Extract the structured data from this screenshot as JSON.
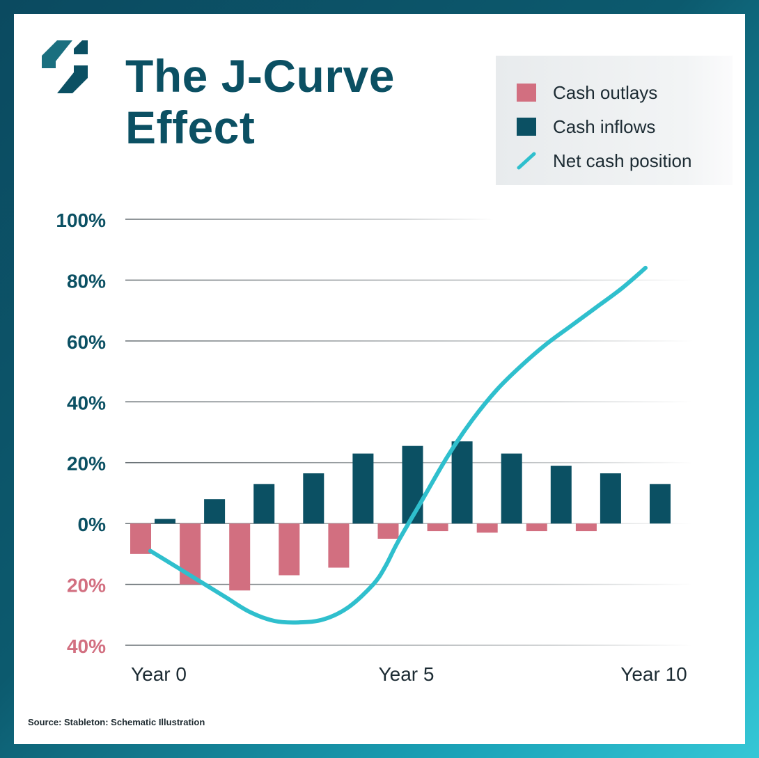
{
  "header": {
    "title_line1": "The J-Curve",
    "title_line2": "Effect",
    "logo_icon": "stableton-logo-icon"
  },
  "legend": {
    "items": [
      {
        "label": "Cash outlays",
        "color": "#d26f80",
        "shape": "square"
      },
      {
        "label": "Cash inflows",
        "color": "#0b5063",
        "shape": "square"
      },
      {
        "label": "Net cash position",
        "color": "#2fbfcd",
        "shape": "line"
      }
    ]
  },
  "footer": {
    "source": "Source: Stableton: Schematic Illustration"
  },
  "colors": {
    "outlay": "#d26f80",
    "inflow": "#0b5063",
    "net": "#2fbfcd",
    "positive_tick": "#0b5063",
    "negative_tick": "#d26f80",
    "grid": "#555e63"
  },
  "chart_data": {
    "type": "bar",
    "title": "The J-Curve Effect",
    "xlabel": "",
    "ylabel": "",
    "x_tick_labels": [
      {
        "year": 0,
        "label": "Year 0"
      },
      {
        "year": 5,
        "label": "Year 5"
      },
      {
        "year": 10,
        "label": "Year 10"
      }
    ],
    "y_ticks": [
      {
        "value": 100,
        "label": "100%"
      },
      {
        "value": 80,
        "label": "80%"
      },
      {
        "value": 60,
        "label": "60%"
      },
      {
        "value": 40,
        "label": "40%"
      },
      {
        "value": 20,
        "label": "20%"
      },
      {
        "value": 0,
        "label": "0%"
      },
      {
        "value": -20,
        "label": "20%"
      },
      {
        "value": -40,
        "label": "40%"
      }
    ],
    "ylim": [
      -40,
      100
    ],
    "xlim": [
      -0.5,
      10.5
    ],
    "grid": true,
    "legend_position": "top-right",
    "series": [
      {
        "name": "Cash outlays",
        "type": "bar",
        "x": [
          0,
          1,
          2,
          3,
          4,
          5,
          6,
          7,
          8,
          9
        ],
        "values": [
          -10,
          -20,
          -22,
          -17,
          -14.5,
          -5,
          -2.5,
          -3,
          -2.5,
          -2.5
        ]
      },
      {
        "name": "Cash inflows",
        "type": "bar",
        "x": [
          0,
          1,
          2,
          3,
          4,
          5,
          6,
          7,
          8,
          9,
          10
        ],
        "values": [
          1.5,
          8,
          13,
          16.5,
          23,
          25.5,
          27,
          23,
          19,
          16.5,
          13
        ]
      },
      {
        "name": "Net cash position",
        "type": "line",
        "x": [
          0,
          0.5,
          1,
          1.5,
          2,
          2.5,
          3,
          3.5,
          4,
          4.5,
          4.75,
          5,
          5.5,
          6,
          6.5,
          7,
          7.5,
          8,
          8.5,
          9,
          9.5,
          10
        ],
        "values": [
          -9,
          -14,
          -19,
          -24,
          -29,
          -32,
          -32.5,
          -31.5,
          -27.5,
          -20,
          -14,
          -6,
          8,
          22,
          34,
          44,
          52,
          59,
          65,
          71,
          77,
          84
        ]
      }
    ]
  }
}
